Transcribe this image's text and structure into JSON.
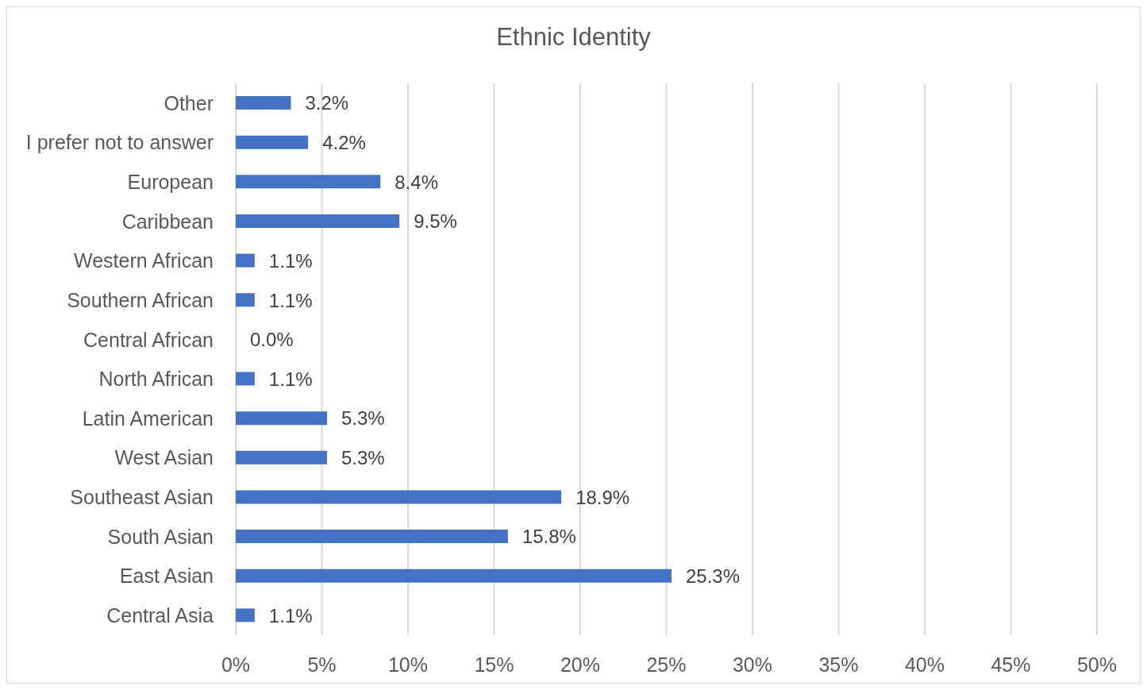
{
  "chart_data": {
    "type": "bar",
    "orientation": "horizontal",
    "title": "Ethnic Identity",
    "categories": [
      "Other",
      "I prefer not to answer",
      "European",
      "Caribbean",
      "Western African",
      "Southern African",
      "Central African",
      "North African",
      "Latin American",
      "West Asian",
      "Southeast Asian",
      "South Asian",
      "East Asian",
      "Central Asia"
    ],
    "values": [
      3.2,
      4.2,
      8.4,
      9.5,
      1.1,
      1.1,
      0.0,
      1.1,
      5.3,
      5.3,
      18.9,
      15.8,
      25.3,
      1.1
    ],
    "value_labels": [
      "3.2%",
      "4.2%",
      "8.4%",
      "9.5%",
      "1.1%",
      "1.1%",
      "0.0%",
      "1.1%",
      "5.3%",
      "5.3%",
      "18.9%",
      "15.8%",
      "25.3%",
      "1.1%"
    ],
    "color": "#4472c4",
    "xlim": [
      0,
      50
    ],
    "xticks": [
      {
        "value": 0,
        "label": "0%"
      },
      {
        "value": 5,
        "label": "5%"
      },
      {
        "value": 10,
        "label": "10%"
      },
      {
        "value": 15,
        "label": "15%"
      },
      {
        "value": 20,
        "label": "20%"
      },
      {
        "value": 25,
        "label": "25%"
      },
      {
        "value": 30,
        "label": "30%"
      },
      {
        "value": 35,
        "label": "35%"
      },
      {
        "value": 40,
        "label": "40%"
      },
      {
        "value": 45,
        "label": "45%"
      },
      {
        "value": 50,
        "label": "50%"
      }
    ],
    "grid": "x"
  }
}
